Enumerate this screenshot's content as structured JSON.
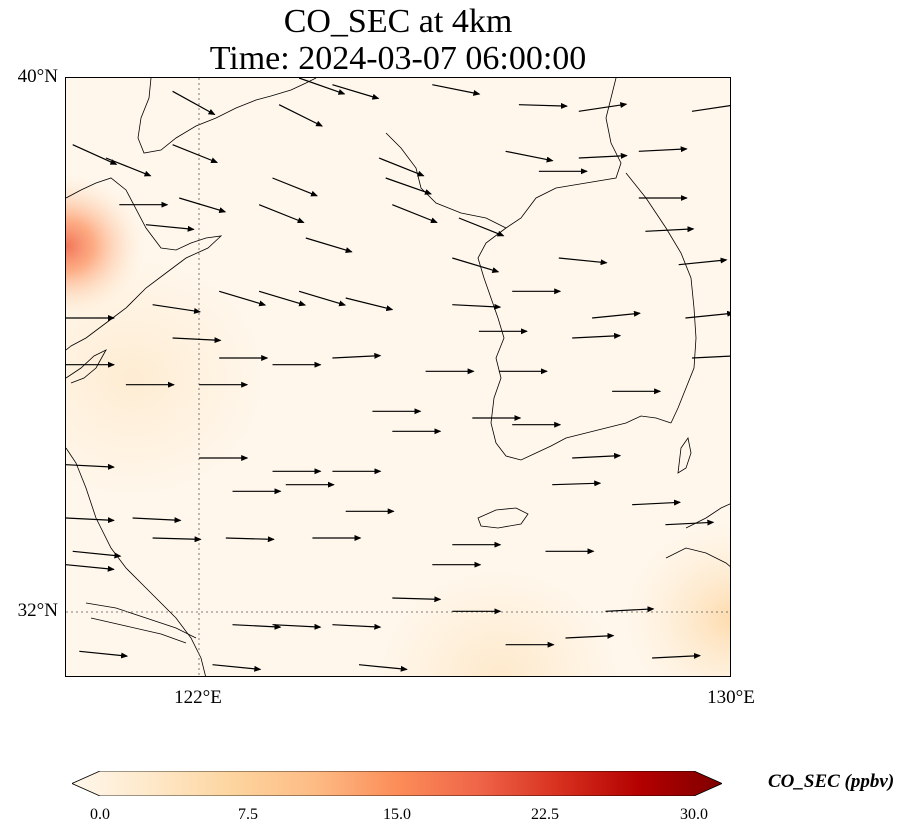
{
  "title": {
    "line1": "CO_SEC at 4km",
    "line2": "Time: 2024-03-07 06:00:00"
  },
  "map": {
    "lat_ticks": [
      "40°N",
      "32°N"
    ],
    "lon_ticks": [
      "122°E",
      "130°E"
    ],
    "extent_lon": [
      120,
      130
    ],
    "extent_lat": [
      31,
      40
    ],
    "gridlines": [
      {
        "lon": 122
      },
      {
        "lat": 32
      }
    ],
    "background_color": "#fff7ec",
    "wind_vectors": [
      {
        "lon": 120.1,
        "lat": 39.0,
        "u": 1,
        "v": -0.45
      },
      {
        "lon": 120.6,
        "lat": 38.8,
        "u": 1,
        "v": -0.4
      },
      {
        "lon": 121.6,
        "lat": 39.8,
        "u": 1,
        "v": -0.55
      },
      {
        "lon": 121.6,
        "lat": 39.0,
        "u": 1,
        "v": -0.4
      },
      {
        "lon": 123.2,
        "lat": 39.6,
        "u": 1,
        "v": -0.5
      },
      {
        "lon": 123.5,
        "lat": 40.0,
        "u": 1,
        "v": -0.35
      },
      {
        "lon": 124.0,
        "lat": 39.9,
        "u": 1,
        "v": -0.3
      },
      {
        "lon": 125.5,
        "lat": 39.9,
        "u": 1,
        "v": -0.2
      },
      {
        "lon": 126.8,
        "lat": 39.6,
        "u": 1,
        "v": -0.03
      },
      {
        "lon": 127.7,
        "lat": 39.5,
        "u": 1,
        "v": 0.15
      },
      {
        "lon": 129.4,
        "lat": 39.5,
        "u": 1,
        "v": 0.15
      },
      {
        "lon": 124.7,
        "lat": 38.8,
        "u": 1,
        "v": -0.4
      },
      {
        "lon": 124.8,
        "lat": 38.5,
        "u": 1,
        "v": -0.35
      },
      {
        "lon": 126.6,
        "lat": 38.9,
        "u": 1,
        "v": -0.2
      },
      {
        "lon": 127.7,
        "lat": 38.8,
        "u": 1,
        "v": 0.05
      },
      {
        "lon": 128.6,
        "lat": 38.9,
        "u": 1,
        "v": 0.05
      },
      {
        "lon": 120.8,
        "lat": 38.1,
        "u": 1,
        "v": 0.0
      },
      {
        "lon": 121.7,
        "lat": 38.2,
        "u": 1,
        "v": -0.3
      },
      {
        "lon": 122.9,
        "lat": 38.1,
        "u": 1,
        "v": -0.4
      },
      {
        "lon": 123.1,
        "lat": 38.5,
        "u": 1,
        "v": -0.4
      },
      {
        "lon": 124.9,
        "lat": 38.1,
        "u": 1,
        "v": -0.4
      },
      {
        "lon": 125.9,
        "lat": 37.9,
        "u": 1,
        "v": -0.4
      },
      {
        "lon": 127.1,
        "lat": 38.6,
        "u": 1,
        "v": 0.0
      },
      {
        "lon": 128.6,
        "lat": 38.2,
        "u": 1,
        "v": 0.0
      },
      {
        "lon": 128.7,
        "lat": 37.7,
        "u": 1,
        "v": 0.05
      },
      {
        "lon": 121.2,
        "lat": 37.8,
        "u": 1,
        "v": -0.1
      },
      {
        "lon": 123.6,
        "lat": 37.6,
        "u": 1,
        "v": -0.3
      },
      {
        "lon": 125.8,
        "lat": 37.3,
        "u": 1,
        "v": -0.3
      },
      {
        "lon": 127.4,
        "lat": 37.3,
        "u": 1,
        "v": -0.1
      },
      {
        "lon": 129.2,
        "lat": 37.2,
        "u": 1,
        "v": 0.1
      },
      {
        "lon": 120.0,
        "lat": 36.4,
        "u": 1,
        "v": 0.0
      },
      {
        "lon": 121.3,
        "lat": 36.6,
        "u": 1,
        "v": -0.15
      },
      {
        "lon": 122.3,
        "lat": 36.8,
        "u": 1,
        "v": -0.3
      },
      {
        "lon": 122.9,
        "lat": 36.8,
        "u": 1,
        "v": -0.3
      },
      {
        "lon": 123.5,
        "lat": 36.8,
        "u": 1,
        "v": -0.3
      },
      {
        "lon": 124.2,
        "lat": 36.7,
        "u": 1,
        "v": -0.25
      },
      {
        "lon": 125.8,
        "lat": 36.6,
        "u": 1,
        "v": -0.05
      },
      {
        "lon": 126.7,
        "lat": 36.8,
        "u": 1,
        "v": 0.0
      },
      {
        "lon": 127.9,
        "lat": 36.4,
        "u": 1,
        "v": 0.1
      },
      {
        "lon": 129.3,
        "lat": 36.4,
        "u": 1,
        "v": 0.1
      },
      {
        "lon": 121.6,
        "lat": 36.1,
        "u": 1,
        "v": -0.05
      },
      {
        "lon": 122.3,
        "lat": 35.8,
        "u": 1,
        "v": 0.0
      },
      {
        "lon": 123.1,
        "lat": 35.7,
        "u": 1,
        "v": 0.0
      },
      {
        "lon": 124.0,
        "lat": 35.8,
        "u": 1,
        "v": 0.05
      },
      {
        "lon": 126.2,
        "lat": 36.2,
        "u": 1,
        "v": 0.0
      },
      {
        "lon": 127.6,
        "lat": 36.1,
        "u": 1,
        "v": 0.05
      },
      {
        "lon": 129.4,
        "lat": 35.8,
        "u": 1,
        "v": 0.05
      },
      {
        "lon": 120.0,
        "lat": 35.7,
        "u": 1,
        "v": 0.0
      },
      {
        "lon": 120.9,
        "lat": 35.4,
        "u": 1,
        "v": 0.0
      },
      {
        "lon": 122.0,
        "lat": 35.4,
        "u": 1,
        "v": 0.0
      },
      {
        "lon": 125.4,
        "lat": 35.6,
        "u": 1,
        "v": 0.0
      },
      {
        "lon": 126.5,
        "lat": 35.6,
        "u": 1,
        "v": 0.0
      },
      {
        "lon": 128.2,
        "lat": 35.3,
        "u": 1,
        "v": 0.0
      },
      {
        "lon": 124.6,
        "lat": 35.0,
        "u": 1,
        "v": 0.0
      },
      {
        "lon": 124.9,
        "lat": 34.7,
        "u": 1,
        "v": 0.0
      },
      {
        "lon": 126.1,
        "lat": 34.9,
        "u": 1,
        "v": 0.0
      },
      {
        "lon": 126.7,
        "lat": 34.8,
        "u": 1,
        "v": 0.0
      },
      {
        "lon": 122.0,
        "lat": 34.3,
        "u": 1,
        "v": 0.0
      },
      {
        "lon": 123.1,
        "lat": 34.1,
        "u": 1,
        "v": 0.0
      },
      {
        "lon": 124.0,
        "lat": 34.1,
        "u": 1,
        "v": 0.0
      },
      {
        "lon": 127.6,
        "lat": 34.3,
        "u": 1,
        "v": 0.05
      },
      {
        "lon": 120.0,
        "lat": 34.2,
        "u": 1,
        "v": -0.05
      },
      {
        "lon": 122.5,
        "lat": 33.8,
        "u": 1,
        "v": 0.0
      },
      {
        "lon": 123.3,
        "lat": 33.9,
        "u": 1,
        "v": 0.0
      },
      {
        "lon": 124.2,
        "lat": 33.5,
        "u": 1,
        "v": 0.0
      },
      {
        "lon": 127.3,
        "lat": 33.9,
        "u": 1,
        "v": 0.03
      },
      {
        "lon": 128.5,
        "lat": 33.6,
        "u": 1,
        "v": 0.05
      },
      {
        "lon": 129.0,
        "lat": 33.3,
        "u": 1,
        "v": 0.05
      },
      {
        "lon": 120.0,
        "lat": 33.4,
        "u": 1,
        "v": -0.05
      },
      {
        "lon": 121.0,
        "lat": 33.4,
        "u": 1,
        "v": -0.05
      },
      {
        "lon": 121.3,
        "lat": 33.1,
        "u": 1,
        "v": -0.03
      },
      {
        "lon": 122.4,
        "lat": 33.1,
        "u": 1,
        "v": -0.03
      },
      {
        "lon": 123.7,
        "lat": 33.1,
        "u": 1,
        "v": 0.0
      },
      {
        "lon": 125.8,
        "lat": 33.0,
        "u": 1,
        "v": 0.0
      },
      {
        "lon": 127.2,
        "lat": 32.9,
        "u": 1,
        "v": 0.0
      },
      {
        "lon": 120.1,
        "lat": 32.9,
        "u": 1,
        "v": -0.1
      },
      {
        "lon": 120.0,
        "lat": 32.7,
        "u": 1,
        "v": -0.1
      },
      {
        "lon": 125.5,
        "lat": 32.7,
        "u": 1,
        "v": 0.0
      },
      {
        "lon": 124.9,
        "lat": 32.2,
        "u": 1,
        "v": -0.03
      },
      {
        "lon": 125.8,
        "lat": 32.0,
        "u": 1,
        "v": 0.0
      },
      {
        "lon": 128.1,
        "lat": 32.0,
        "u": 1,
        "v": 0.05
      },
      {
        "lon": 122.5,
        "lat": 31.8,
        "u": 1,
        "v": -0.05
      },
      {
        "lon": 123.1,
        "lat": 31.8,
        "u": 1,
        "v": -0.05
      },
      {
        "lon": 124.0,
        "lat": 31.8,
        "u": 1,
        "v": -0.05
      },
      {
        "lon": 127.5,
        "lat": 31.6,
        "u": 1,
        "v": 0.05
      },
      {
        "lon": 126.6,
        "lat": 31.5,
        "u": 1,
        "v": 0.0
      },
      {
        "lon": 120.2,
        "lat": 31.4,
        "u": 1,
        "v": -0.1
      },
      {
        "lon": 122.2,
        "lat": 31.2,
        "u": 1,
        "v": -0.1
      },
      {
        "lon": 124.4,
        "lat": 31.2,
        "u": 1,
        "v": -0.1
      },
      {
        "lon": 128.8,
        "lat": 31.3,
        "u": 1,
        "v": 0.05
      }
    ]
  },
  "colorbar": {
    "label": "CO_SEC (ppbv)",
    "ticks": [
      "0.0",
      "7.5",
      "15.0",
      "22.5",
      "30.0"
    ],
    "range": [
      0,
      30
    ],
    "colors": [
      "#fff7ec",
      "#fee8c8",
      "#fdd49e",
      "#fdbb84",
      "#fc8d59",
      "#ef6548",
      "#d7301f",
      "#b30000",
      "#7f0000"
    ]
  }
}
